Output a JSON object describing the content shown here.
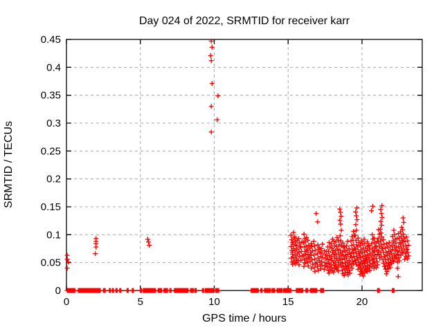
{
  "chart_data": {
    "type": "scatter",
    "title": "Day 024 of 2022, SRMTID for receiver karr",
    "xlabel": "GPS time / hours",
    "ylabel": "SRMTID / TECUs",
    "xlim": [
      0,
      24.1
    ],
    "ylim": [
      0,
      0.45
    ],
    "xticks": [
      0,
      5,
      10,
      15,
      20
    ],
    "xtick_labels": [
      "0",
      "5",
      "10",
      "15",
      "20"
    ],
    "yticks": [
      0,
      0.05,
      0.1,
      0.15,
      0.2,
      0.25,
      0.3,
      0.35,
      0.4,
      0.45
    ],
    "ytick_labels": [
      "0",
      "0.05",
      "0.1",
      "0.15",
      "0.2",
      "0.25",
      "0.3",
      "0.35",
      "0.4",
      "0.45"
    ],
    "grid": {
      "visible": true,
      "style": "dashed",
      "color": "#a6a6a6"
    },
    "marker": {
      "shape": "plus",
      "color": "#ff0000",
      "size": 7
    },
    "border_color": "#000000",
    "series_name": "SRMTID",
    "points": [
      [
        0.05,
        0.063
      ],
      [
        0.05,
        0.056
      ],
      [
        0.12,
        0.051
      ],
      [
        0.05,
        0.04
      ],
      [
        2.0,
        0.093
      ],
      [
        2.0,
        0.088
      ],
      [
        2.0,
        0.084
      ],
      [
        2.0,
        0.078
      ],
      [
        1.95,
        0.066
      ],
      [
        5.5,
        0.092
      ],
      [
        5.55,
        0.087
      ],
      [
        5.6,
        0.081
      ],
      [
        9.8,
        0.447
      ],
      [
        9.85,
        0.436
      ],
      [
        9.75,
        0.421
      ],
      [
        9.8,
        0.412
      ],
      [
        9.85,
        0.371
      ],
      [
        10.25,
        0.349
      ],
      [
        9.8,
        0.33
      ],
      [
        10.2,
        0.306
      ],
      [
        9.8,
        0.284
      ],
      [
        16.9,
        0.138
      ],
      [
        17.0,
        0.123
      ],
      [
        22.4,
        0.04
      ],
      [
        22.45,
        0.025
      ]
    ],
    "streaks": [
      {
        "x": 15.25,
        "ys": [
          0.099,
          0.091,
          0.086,
          0.079,
          0.072,
          0.065,
          0.058,
          0.051
        ]
      },
      {
        "x": 15.35,
        "ys": [
          0.104,
          0.094,
          0.083,
          0.075,
          0.068,
          0.06,
          0.053,
          0.047
        ]
      },
      {
        "x": 15.5,
        "ys": [
          0.096,
          0.088,
          0.08,
          0.071,
          0.063,
          0.055,
          0.048
        ]
      },
      {
        "x": 15.6,
        "ys": [
          0.09,
          0.082,
          0.074,
          0.066,
          0.058,
          0.05
        ]
      },
      {
        "x": 15.75,
        "ys": [
          0.093,
          0.085,
          0.077,
          0.069,
          0.061,
          0.053,
          0.046
        ]
      },
      {
        "x": 15.9,
        "ys": [
          0.087,
          0.079,
          0.07,
          0.062,
          0.054
        ]
      },
      {
        "x": 16.1,
        "ys": [
          0.101,
          0.093,
          0.086,
          0.078,
          0.07,
          0.063,
          0.056,
          0.049,
          0.043
        ]
      },
      {
        "x": 16.2,
        "ys": [
          0.095,
          0.087,
          0.079,
          0.071,
          0.064,
          0.057,
          0.05
        ]
      },
      {
        "x": 16.35,
        "ys": [
          0.09,
          0.081,
          0.073,
          0.065,
          0.058,
          0.051,
          0.044
        ]
      },
      {
        "x": 16.5,
        "ys": [
          0.084,
          0.076,
          0.068,
          0.06,
          0.052
        ]
      },
      {
        "x": 16.6,
        "ys": [
          0.079,
          0.071,
          0.063,
          0.055,
          0.047,
          0.04
        ]
      },
      {
        "x": 16.8,
        "ys": [
          0.088,
          0.08,
          0.072,
          0.064,
          0.056,
          0.048,
          0.041,
          0.034
        ]
      },
      {
        "x": 17.0,
        "ys": [
          0.082,
          0.074,
          0.066,
          0.058,
          0.05,
          0.043,
          0.036
        ]
      },
      {
        "x": 17.15,
        "ys": [
          0.077,
          0.069,
          0.061,
          0.053,
          0.046,
          0.039
        ]
      },
      {
        "x": 17.3,
        "ys": [
          0.083,
          0.075,
          0.067,
          0.059,
          0.052,
          0.045
        ]
      },
      {
        "x": 17.5,
        "ys": [
          0.071,
          0.064,
          0.057,
          0.05,
          0.044,
          0.038
        ]
      },
      {
        "x": 17.65,
        "ys": [
          0.078,
          0.07,
          0.062,
          0.055,
          0.048,
          0.042,
          0.036
        ]
      },
      {
        "x": 17.8,
        "ys": [
          0.086,
          0.078,
          0.07,
          0.063,
          0.056,
          0.049,
          0.043,
          0.037,
          0.031
        ]
      },
      {
        "x": 17.95,
        "ys": [
          0.092,
          0.084,
          0.076,
          0.068,
          0.061,
          0.054,
          0.047,
          0.041,
          0.035
        ]
      },
      {
        "x": 18.1,
        "ys": [
          0.088,
          0.08,
          0.072,
          0.065,
          0.058,
          0.051,
          0.045,
          0.039,
          0.033
        ]
      },
      {
        "x": 18.25,
        "ys": [
          0.095,
          0.087,
          0.079,
          0.071,
          0.064,
          0.057,
          0.05,
          0.044,
          0.038
        ]
      },
      {
        "x": 18.4,
        "ys": [
          0.09,
          0.082,
          0.074,
          0.067,
          0.06,
          0.053,
          0.047,
          0.041,
          0.035
        ]
      },
      {
        "x": 18.55,
        "ys": [
          0.146,
          0.14,
          0.133,
          0.126,
          0.119,
          0.108,
          0.098,
          0.089,
          0.08,
          0.072,
          0.064,
          0.057,
          0.05,
          0.044
        ]
      },
      {
        "x": 18.7,
        "ys": [
          0.085,
          0.077,
          0.069,
          0.062,
          0.055,
          0.048,
          0.042,
          0.036,
          0.03
        ]
      },
      {
        "x": 18.85,
        "ys": [
          0.079,
          0.071,
          0.064,
          0.057,
          0.05,
          0.044,
          0.038,
          0.032,
          0.027
        ]
      },
      {
        "x": 19.0,
        "ys": [
          0.088,
          0.08,
          0.072,
          0.065,
          0.058,
          0.051,
          0.045,
          0.039,
          0.033,
          0.028
        ]
      },
      {
        "x": 19.15,
        "ys": [
          0.075,
          0.068,
          0.061,
          0.054,
          0.048,
          0.042,
          0.036,
          0.031
        ]
      },
      {
        "x": 19.3,
        "ys": [
          0.097,
          0.089,
          0.081,
          0.073,
          0.066,
          0.059,
          0.052,
          0.046,
          0.04
        ]
      },
      {
        "x": 19.45,
        "ys": [
          0.106,
          0.098,
          0.09,
          0.082,
          0.075,
          0.068,
          0.061,
          0.054,
          0.048
        ]
      },
      {
        "x": 19.6,
        "ys": [
          0.148,
          0.141,
          0.134,
          0.127,
          0.118,
          0.108,
          0.099,
          0.09,
          0.082,
          0.074,
          0.067,
          0.06,
          0.053,
          0.047
        ]
      },
      {
        "x": 19.75,
        "ys": [
          0.094,
          0.086,
          0.078,
          0.07,
          0.063,
          0.056,
          0.05,
          0.044,
          0.038
        ]
      },
      {
        "x": 19.9,
        "ys": [
          0.089,
          0.081,
          0.073,
          0.066,
          0.059,
          0.052,
          0.046,
          0.04,
          0.034,
          0.029
        ]
      },
      {
        "x": 20.05,
        "ys": [
          0.084,
          0.076,
          0.068,
          0.061,
          0.054,
          0.048,
          0.042,
          0.036,
          0.031,
          0.026
        ]
      },
      {
        "x": 20.2,
        "ys": [
          0.092,
          0.084,
          0.076,
          0.069,
          0.062,
          0.055,
          0.049,
          0.043,
          0.037,
          0.032
        ]
      },
      {
        "x": 20.35,
        "ys": [
          0.087,
          0.079,
          0.071,
          0.064,
          0.057,
          0.051,
          0.045,
          0.039,
          0.034
        ]
      },
      {
        "x": 20.5,
        "ys": [
          0.081,
          0.073,
          0.066,
          0.059,
          0.053,
          0.047,
          0.041,
          0.036
        ]
      },
      {
        "x": 20.7,
        "ys": [
          0.151,
          0.143,
          0.1,
          0.092,
          0.084,
          0.076,
          0.069,
          0.062,
          0.055,
          0.049,
          0.043
        ]
      },
      {
        "x": 20.85,
        "ys": [
          0.094,
          0.086,
          0.078,
          0.071,
          0.064,
          0.057,
          0.051,
          0.045,
          0.04
        ]
      },
      {
        "x": 21.0,
        "ys": [
          0.088,
          0.08,
          0.072,
          0.065,
          0.058,
          0.052,
          0.046,
          0.041
        ]
      },
      {
        "x": 21.15,
        "ys": [
          0.109,
          0.101,
          0.093,
          0.085,
          0.078,
          0.071,
          0.064,
          0.058
        ]
      },
      {
        "x": 21.3,
        "ys": [
          0.152,
          0.145,
          0.138,
          0.131,
          0.124,
          0.117,
          0.11,
          0.103,
          0.096,
          0.089,
          0.082,
          0.075,
          0.068,
          0.061
        ]
      },
      {
        "x": 21.45,
        "ys": [
          0.091,
          0.083,
          0.075,
          0.068,
          0.061,
          0.055,
          0.049,
          0.043
        ]
      },
      {
        "x": 21.6,
        "ys": [
          0.084,
          0.076,
          0.068,
          0.061,
          0.055,
          0.049,
          0.043,
          0.038,
          0.03
        ]
      },
      {
        "x": 21.75,
        "ys": [
          0.078,
          0.07,
          0.063,
          0.056,
          0.05,
          0.044,
          0.039,
          0.034
        ]
      },
      {
        "x": 21.9,
        "ys": [
          0.086,
          0.078,
          0.071,
          0.064,
          0.057,
          0.051,
          0.046,
          0.041
        ]
      },
      {
        "x": 22.05,
        "ys": [
          0.097,
          0.089,
          0.081,
          0.074,
          0.067,
          0.06,
          0.054,
          0.048
        ]
      },
      {
        "x": 22.2,
        "ys": [
          0.108,
          0.1,
          0.092,
          0.085,
          0.078,
          0.071,
          0.064,
          0.058,
          0.052
        ]
      },
      {
        "x": 22.35,
        "ys": [
          0.093,
          0.085,
          0.077,
          0.07,
          0.063,
          0.057,
          0.051
        ]
      },
      {
        "x": 22.5,
        "ys": [
          0.102,
          0.094,
          0.086,
          0.079,
          0.072,
          0.065,
          0.059,
          0.053
        ]
      },
      {
        "x": 22.65,
        "ys": [
          0.113,
          0.105,
          0.097,
          0.09,
          0.083,
          0.076,
          0.069,
          0.063
        ]
      },
      {
        "x": 22.8,
        "ys": [
          0.13,
          0.122,
          0.109,
          0.101,
          0.094,
          0.087,
          0.08,
          0.073,
          0.067
        ]
      },
      {
        "x": 22.95,
        "ys": [
          0.096,
          0.088,
          0.08,
          0.073,
          0.067,
          0.061,
          0.056
        ]
      },
      {
        "x": 23.1,
        "ys": [
          0.089,
          0.081,
          0.074,
          0.068,
          0.062,
          0.057
        ]
      }
    ],
    "zero_segments": [
      [
        0.05,
        0.6
      ],
      [
        0.8,
        1.0
      ],
      [
        1.05,
        2.3
      ],
      [
        2.5,
        2.65
      ],
      [
        2.9,
        3.0
      ],
      [
        3.1,
        3.2
      ],
      [
        3.35,
        3.45
      ],
      [
        3.6,
        3.7
      ],
      [
        4.1,
        4.2
      ],
      [
        4.45,
        4.55
      ],
      [
        5.0,
        5.1
      ],
      [
        5.2,
        5.65
      ],
      [
        5.7,
        6.05
      ],
      [
        6.2,
        6.45
      ],
      [
        6.6,
        6.85
      ],
      [
        7.0,
        7.1
      ],
      [
        7.3,
        7.7
      ],
      [
        7.75,
        8.25
      ],
      [
        8.4,
        8.6
      ],
      [
        8.7,
        8.8
      ],
      [
        9.2,
        9.3
      ],
      [
        9.4,
        9.7
      ],
      [
        9.75,
        10.0
      ],
      [
        10.1,
        10.3
      ],
      [
        12.5,
        13.0
      ],
      [
        13.15,
        13.25
      ],
      [
        13.4,
        13.5
      ],
      [
        13.55,
        13.65
      ],
      [
        13.7,
        13.8
      ],
      [
        13.9,
        14.1
      ],
      [
        14.25,
        14.35
      ],
      [
        14.4,
        14.6
      ],
      [
        14.7,
        15.2
      ],
      [
        15.55,
        16.0
      ],
      [
        16.2,
        16.35
      ],
      [
        16.5,
        16.95
      ],
      [
        17.2,
        17.4
      ],
      [
        21.05,
        21.2
      ],
      [
        22.05,
        22.2
      ]
    ]
  }
}
